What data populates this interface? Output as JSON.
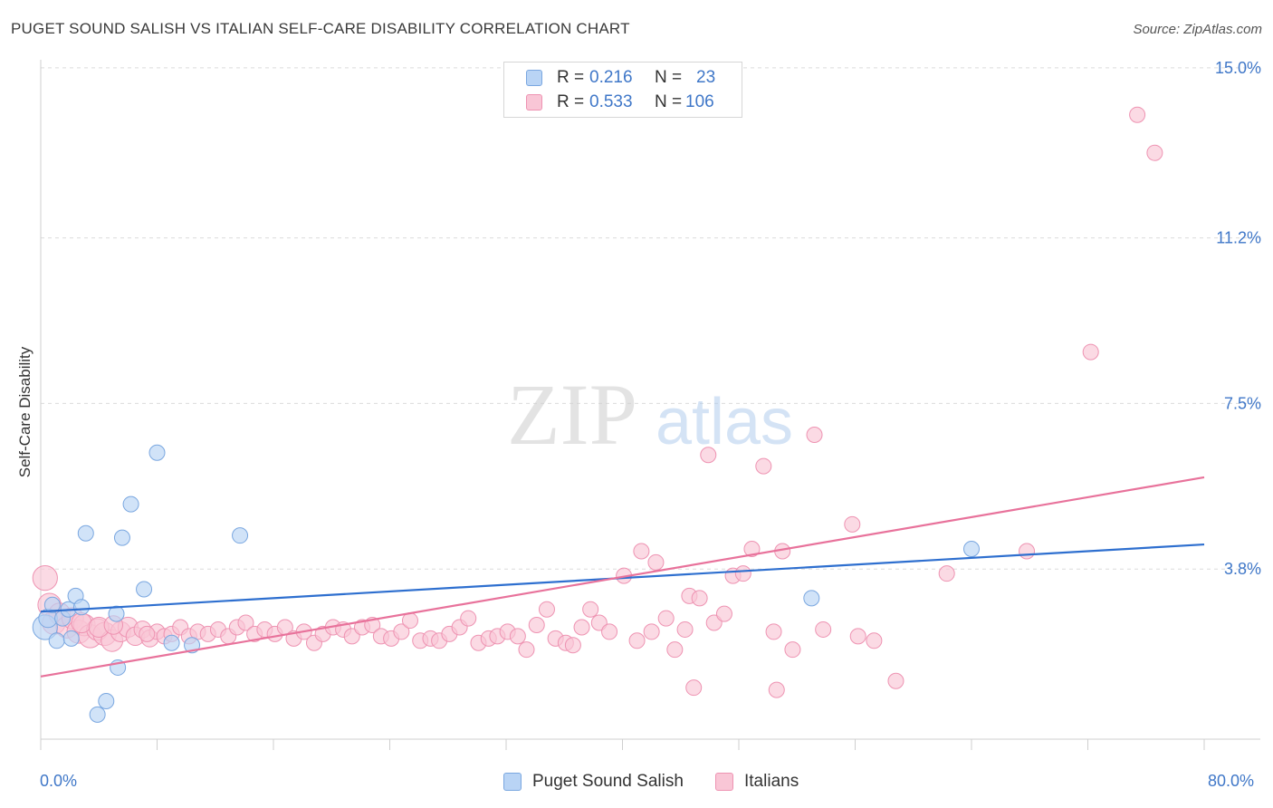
{
  "header": {
    "title": "PUGET SOUND SALISH VS ITALIAN SELF-CARE DISABILITY CORRELATION CHART",
    "source": "Source: ZipAtlas.com"
  },
  "legend": {
    "r_label": "R =",
    "n_label": "N =",
    "series": [
      {
        "name": "Puget Sound Salish",
        "r": "0.216",
        "n": "23"
      },
      {
        "name": "Italians",
        "r": "0.533",
        "n": "106"
      }
    ]
  },
  "watermark": {
    "zip": "ZIP",
    "atlas": "atlas"
  },
  "colors": {
    "blue_fill": "#b9d4f5",
    "blue_stroke": "#7aa7e0",
    "blue_line": "#2e6fcf",
    "pink_fill": "#f9c6d6",
    "pink_stroke": "#ee93b2",
    "pink_line": "#e8729b",
    "tick_text": "#3f77c8"
  },
  "chart_data": {
    "type": "scatter",
    "title": "PUGET SOUND SALISH VS ITALIAN SELF-CARE DISABILITY CORRELATION CHART",
    "xlabel": "",
    "ylabel": "Self-Care Disability",
    "xlim": [
      0,
      80
    ],
    "ylim": [
      0,
      15.3
    ],
    "x_tick_labels": [
      "0.0%",
      "80.0%"
    ],
    "y_ticks": [
      3.8,
      7.5,
      11.2,
      15.0
    ],
    "y_tick_labels": [
      "3.8%",
      "7.5%",
      "11.2%",
      "15.0%"
    ],
    "grid": true,
    "legend_position": "top-center",
    "series": [
      {
        "name": "Puget Sound Salish",
        "trend": {
          "x": [
            0,
            80
          ],
          "y": [
            2.85,
            4.35
          ]
        },
        "points": [
          {
            "x": 0.3,
            "y": 2.5,
            "s": 1.6
          },
          {
            "x": 0.5,
            "y": 2.7,
            "s": 1.2
          },
          {
            "x": 0.8,
            "y": 3.0,
            "s": 1.0
          },
          {
            "x": 1.1,
            "y": 2.2,
            "s": 1.0
          },
          {
            "x": 1.5,
            "y": 2.7,
            "s": 1.0
          },
          {
            "x": 1.9,
            "y": 2.9,
            "s": 1.0
          },
          {
            "x": 2.1,
            "y": 2.25,
            "s": 1.0
          },
          {
            "x": 2.4,
            "y": 3.2,
            "s": 1.0
          },
          {
            "x": 2.8,
            "y": 2.95,
            "s": 1.0
          },
          {
            "x": 3.1,
            "y": 4.6,
            "s": 1.0
          },
          {
            "x": 3.9,
            "y": 0.55,
            "s": 1.0
          },
          {
            "x": 4.5,
            "y": 0.85,
            "s": 1.0
          },
          {
            "x": 5.2,
            "y": 2.8,
            "s": 1.0
          },
          {
            "x": 5.3,
            "y": 1.6,
            "s": 1.0
          },
          {
            "x": 5.6,
            "y": 4.5,
            "s": 1.0
          },
          {
            "x": 6.2,
            "y": 5.25,
            "s": 1.0
          },
          {
            "x": 7.1,
            "y": 3.35,
            "s": 1.0
          },
          {
            "x": 8.0,
            "y": 6.4,
            "s": 1.0
          },
          {
            "x": 9.0,
            "y": 2.15,
            "s": 1.0
          },
          {
            "x": 10.4,
            "y": 2.1,
            "s": 1.0
          },
          {
            "x": 13.7,
            "y": 4.55,
            "s": 1.0
          },
          {
            "x": 53.0,
            "y": 3.15,
            "s": 1.0
          },
          {
            "x": 64.0,
            "y": 4.25,
            "s": 1.0
          }
        ]
      },
      {
        "name": "Italians",
        "trend": {
          "x": [
            0,
            80
          ],
          "y": [
            1.4,
            5.85
          ]
        },
        "points": [
          {
            "x": 0.3,
            "y": 3.6,
            "s": 1.6
          },
          {
            "x": 0.6,
            "y": 3.0,
            "s": 1.5
          },
          {
            "x": 0.9,
            "y": 2.6,
            "s": 1.5
          },
          {
            "x": 1.3,
            "y": 2.8,
            "s": 1.4
          },
          {
            "x": 1.8,
            "y": 2.5,
            "s": 1.4
          },
          {
            "x": 2.2,
            "y": 2.7,
            "s": 1.4
          },
          {
            "x": 2.6,
            "y": 2.4,
            "s": 1.5
          },
          {
            "x": 3.0,
            "y": 2.55,
            "s": 1.4
          },
          {
            "x": 3.4,
            "y": 2.3,
            "s": 1.5
          },
          {
            "x": 3.9,
            "y": 2.45,
            "s": 1.4
          },
          {
            "x": 4.4,
            "y": 2.35,
            "s": 1.5
          },
          {
            "x": 4.9,
            "y": 2.2,
            "s": 1.4
          },
          {
            "x": 5.5,
            "y": 2.4,
            "s": 1.3
          },
          {
            "x": 6.0,
            "y": 2.5,
            "s": 1.3
          },
          {
            "x": 6.5,
            "y": 2.3,
            "s": 1.2
          },
          {
            "x": 7.0,
            "y": 2.45,
            "s": 1.1
          },
          {
            "x": 7.5,
            "y": 2.25,
            "s": 1.1
          },
          {
            "x": 8.0,
            "y": 2.4,
            "s": 1.0
          },
          {
            "x": 8.5,
            "y": 2.3,
            "s": 1.0
          },
          {
            "x": 9.0,
            "y": 2.35,
            "s": 1.0
          },
          {
            "x": 9.6,
            "y": 2.5,
            "s": 1.0
          },
          {
            "x": 10.2,
            "y": 2.3,
            "s": 1.0
          },
          {
            "x": 10.8,
            "y": 2.4,
            "s": 1.0
          },
          {
            "x": 11.5,
            "y": 2.35,
            "s": 1.0
          },
          {
            "x": 12.2,
            "y": 2.45,
            "s": 1.0
          },
          {
            "x": 12.9,
            "y": 2.3,
            "s": 1.0
          },
          {
            "x": 13.5,
            "y": 2.5,
            "s": 1.0
          },
          {
            "x": 14.1,
            "y": 2.6,
            "s": 1.0
          },
          {
            "x": 14.7,
            "y": 2.35,
            "s": 1.0
          },
          {
            "x": 15.4,
            "y": 2.45,
            "s": 1.0
          },
          {
            "x": 16.1,
            "y": 2.35,
            "s": 1.0
          },
          {
            "x": 16.8,
            "y": 2.5,
            "s": 1.0
          },
          {
            "x": 17.4,
            "y": 2.25,
            "s": 1.0
          },
          {
            "x": 18.1,
            "y": 2.4,
            "s": 1.0
          },
          {
            "x": 18.8,
            "y": 2.15,
            "s": 1.0
          },
          {
            "x": 19.4,
            "y": 2.35,
            "s": 1.0
          },
          {
            "x": 20.1,
            "y": 2.5,
            "s": 1.0
          },
          {
            "x": 20.8,
            "y": 2.45,
            "s": 1.0
          },
          {
            "x": 21.4,
            "y": 2.3,
            "s": 1.0
          },
          {
            "x": 22.1,
            "y": 2.5,
            "s": 1.0
          },
          {
            "x": 22.8,
            "y": 2.55,
            "s": 1.0
          },
          {
            "x": 23.4,
            "y": 2.3,
            "s": 1.0
          },
          {
            "x": 24.1,
            "y": 2.25,
            "s": 1.0
          },
          {
            "x": 24.8,
            "y": 2.4,
            "s": 1.0
          },
          {
            "x": 25.4,
            "y": 2.65,
            "s": 1.0
          },
          {
            "x": 26.1,
            "y": 2.2,
            "s": 1.0
          },
          {
            "x": 26.8,
            "y": 2.25,
            "s": 1.0
          },
          {
            "x": 27.4,
            "y": 2.2,
            "s": 1.0
          },
          {
            "x": 28.1,
            "y": 2.35,
            "s": 1.0
          },
          {
            "x": 28.8,
            "y": 2.5,
            "s": 1.0
          },
          {
            "x": 29.4,
            "y": 2.7,
            "s": 1.0
          },
          {
            "x": 30.1,
            "y": 2.15,
            "s": 1.0
          },
          {
            "x": 30.8,
            "y": 2.25,
            "s": 1.0
          },
          {
            "x": 31.4,
            "y": 2.3,
            "s": 1.0
          },
          {
            "x": 32.1,
            "y": 2.4,
            "s": 1.0
          },
          {
            "x": 32.8,
            "y": 2.3,
            "s": 1.0
          },
          {
            "x": 33.4,
            "y": 2.0,
            "s": 1.0
          },
          {
            "x": 34.1,
            "y": 2.55,
            "s": 1.0
          },
          {
            "x": 34.8,
            "y": 2.9,
            "s": 1.0
          },
          {
            "x": 35.4,
            "y": 2.25,
            "s": 1.0
          },
          {
            "x": 36.1,
            "y": 2.15,
            "s": 1.0
          },
          {
            "x": 36.6,
            "y": 2.1,
            "s": 1.0
          },
          {
            "x": 37.2,
            "y": 2.5,
            "s": 1.0
          },
          {
            "x": 37.8,
            "y": 2.9,
            "s": 1.0
          },
          {
            "x": 38.4,
            "y": 2.6,
            "s": 1.0
          },
          {
            "x": 39.1,
            "y": 2.4,
            "s": 1.0
          },
          {
            "x": 40.1,
            "y": 3.65,
            "s": 1.0
          },
          {
            "x": 41.0,
            "y": 2.2,
            "s": 1.0
          },
          {
            "x": 41.3,
            "y": 4.2,
            "s": 1.0
          },
          {
            "x": 42.0,
            "y": 2.4,
            "s": 1.0
          },
          {
            "x": 42.3,
            "y": 3.95,
            "s": 1.0
          },
          {
            "x": 43.0,
            "y": 2.7,
            "s": 1.0
          },
          {
            "x": 43.6,
            "y": 2.0,
            "s": 1.0
          },
          {
            "x": 44.3,
            "y": 2.45,
            "s": 1.0
          },
          {
            "x": 44.6,
            "y": 3.2,
            "s": 1.0
          },
          {
            "x": 44.9,
            "y": 1.15,
            "s": 1.0
          },
          {
            "x": 45.3,
            "y": 3.15,
            "s": 1.0
          },
          {
            "x": 45.9,
            "y": 6.35,
            "s": 1.0
          },
          {
            "x": 46.3,
            "y": 2.6,
            "s": 1.0
          },
          {
            "x": 47.0,
            "y": 2.8,
            "s": 1.0
          },
          {
            "x": 47.6,
            "y": 3.65,
            "s": 1.0
          },
          {
            "x": 48.3,
            "y": 3.7,
            "s": 1.0
          },
          {
            "x": 48.9,
            "y": 4.25,
            "s": 1.0
          },
          {
            "x": 49.7,
            "y": 6.1,
            "s": 1.0
          },
          {
            "x": 50.4,
            "y": 2.4,
            "s": 1.0
          },
          {
            "x": 50.6,
            "y": 1.1,
            "s": 1.0
          },
          {
            "x": 51.0,
            "y": 4.2,
            "s": 1.0
          },
          {
            "x": 51.7,
            "y": 2.0,
            "s": 1.0
          },
          {
            "x": 53.2,
            "y": 6.8,
            "s": 1.0
          },
          {
            "x": 53.8,
            "y": 2.45,
            "s": 1.0
          },
          {
            "x": 55.8,
            "y": 4.8,
            "s": 1.0
          },
          {
            "x": 56.2,
            "y": 2.3,
            "s": 1.0
          },
          {
            "x": 57.3,
            "y": 2.2,
            "s": 1.0
          },
          {
            "x": 58.8,
            "y": 1.3,
            "s": 1.0
          },
          {
            "x": 62.3,
            "y": 3.7,
            "s": 1.0
          },
          {
            "x": 67.8,
            "y": 4.2,
            "s": 1.0
          },
          {
            "x": 72.2,
            "y": 8.65,
            "s": 1.0
          },
          {
            "x": 75.4,
            "y": 13.95,
            "s": 1.0
          },
          {
            "x": 76.6,
            "y": 13.1,
            "s": 1.0
          },
          {
            "x": 2.8,
            "y": 2.6,
            "s": 1.3
          },
          {
            "x": 4.0,
            "y": 2.5,
            "s": 1.3
          },
          {
            "x": 5.0,
            "y": 2.55,
            "s": 1.2
          },
          {
            "x": 7.3,
            "y": 2.35,
            "s": 1.0
          }
        ]
      }
    ]
  }
}
